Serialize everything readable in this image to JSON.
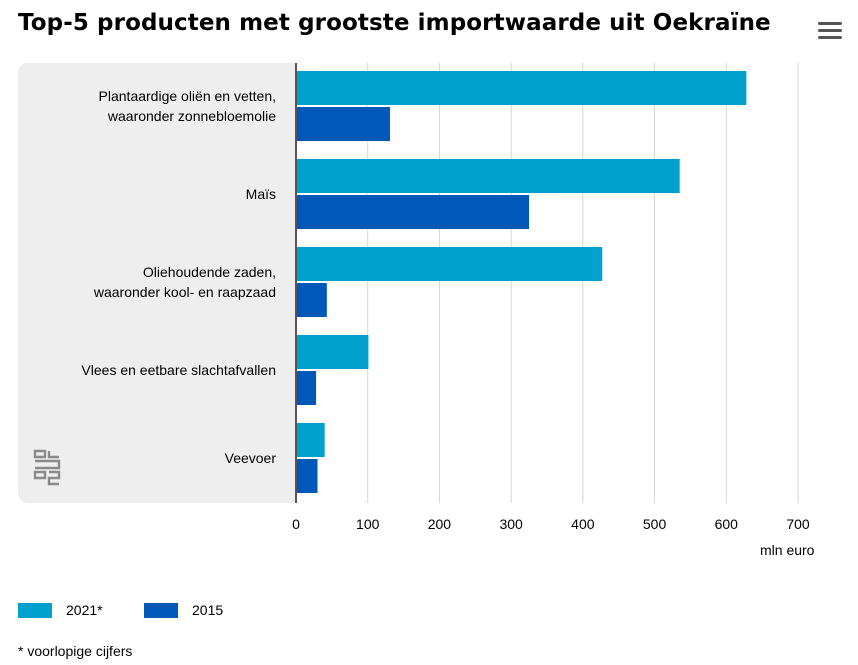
{
  "chart_data": {
    "type": "bar",
    "orientation": "horizontal",
    "title": "Top-5 producten met grootste importwaarde uit Oekraïne",
    "categories": [
      [
        "Plantaardige oliën en vetten,",
        "waaronder zonnebloemolie"
      ],
      [
        "Maïs"
      ],
      [
        "Oliehoudende zaden,",
        "waaronder kool- en raapzaad"
      ],
      [
        "Vlees en eetbare slachtafvallen"
      ],
      [
        "Veevoer"
      ]
    ],
    "series": [
      {
        "name": "2021*",
        "color": "#00a1cd",
        "values": [
          628,
          535,
          427,
          101,
          40
        ]
      },
      {
        "name": "2015",
        "color": "#0058b8",
        "values": [
          131,
          325,
          43,
          28,
          30
        ]
      }
    ],
    "xlim": [
      0,
      700
    ],
    "xticks": [
      "0",
      "100",
      "200",
      "300",
      "400",
      "500",
      "600",
      "700"
    ],
    "xlabel": "mln euro",
    "grid": true,
    "legend_position": "bottom-left",
    "footnote": "* voorlopige cijfers"
  },
  "icons": {
    "menu": "hamburger-menu-icon",
    "logo": "cbs-logo-icon"
  }
}
